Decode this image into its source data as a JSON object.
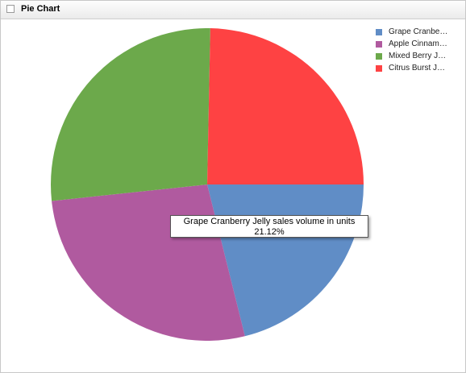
{
  "panel": {
    "title": "Pie Chart"
  },
  "chart_data": {
    "type": "pie",
    "series": [
      {
        "name": "Grape Cranbe…",
        "value": 21.12,
        "color": "#608dc6"
      },
      {
        "name": "Apple Cinnam…",
        "value": 27.2,
        "color": "#b05a9f"
      },
      {
        "name": "Mixed Berry J…",
        "value": 27.0,
        "color": "#6ca94b"
      },
      {
        "name": "Citrus Burst J…",
        "value": 24.68,
        "color": "#fe4243"
      }
    ],
    "legend_position": "top-right",
    "tooltip": {
      "line1": "Grape Cranberry Jelly sales volume in units",
      "line2": "21.12%"
    }
  }
}
